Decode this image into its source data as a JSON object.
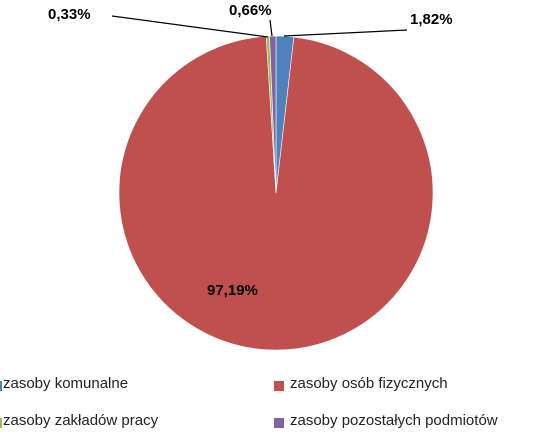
{
  "chart_data": {
    "type": "pie",
    "title": "",
    "start_angle_deg": 0,
    "direction": "clockwise",
    "legend_position": "bottom",
    "slices": [
      {
        "name": "zasoby komunalne",
        "value": 1.82,
        "label": "1,82%",
        "color": "#4f81bd"
      },
      {
        "name": "zasoby osób fizycznych",
        "value": 97.19,
        "label": "97,19%",
        "color": "#c0504d"
      },
      {
        "name": "zasoby zakładów pracy",
        "value": 0.33,
        "label": "0,33%",
        "color": "#9bbb59"
      },
      {
        "name": "zasoby pozostałych podmiotów",
        "value": 0.66,
        "label": "0,66%",
        "color": "#8064a2"
      }
    ]
  }
}
